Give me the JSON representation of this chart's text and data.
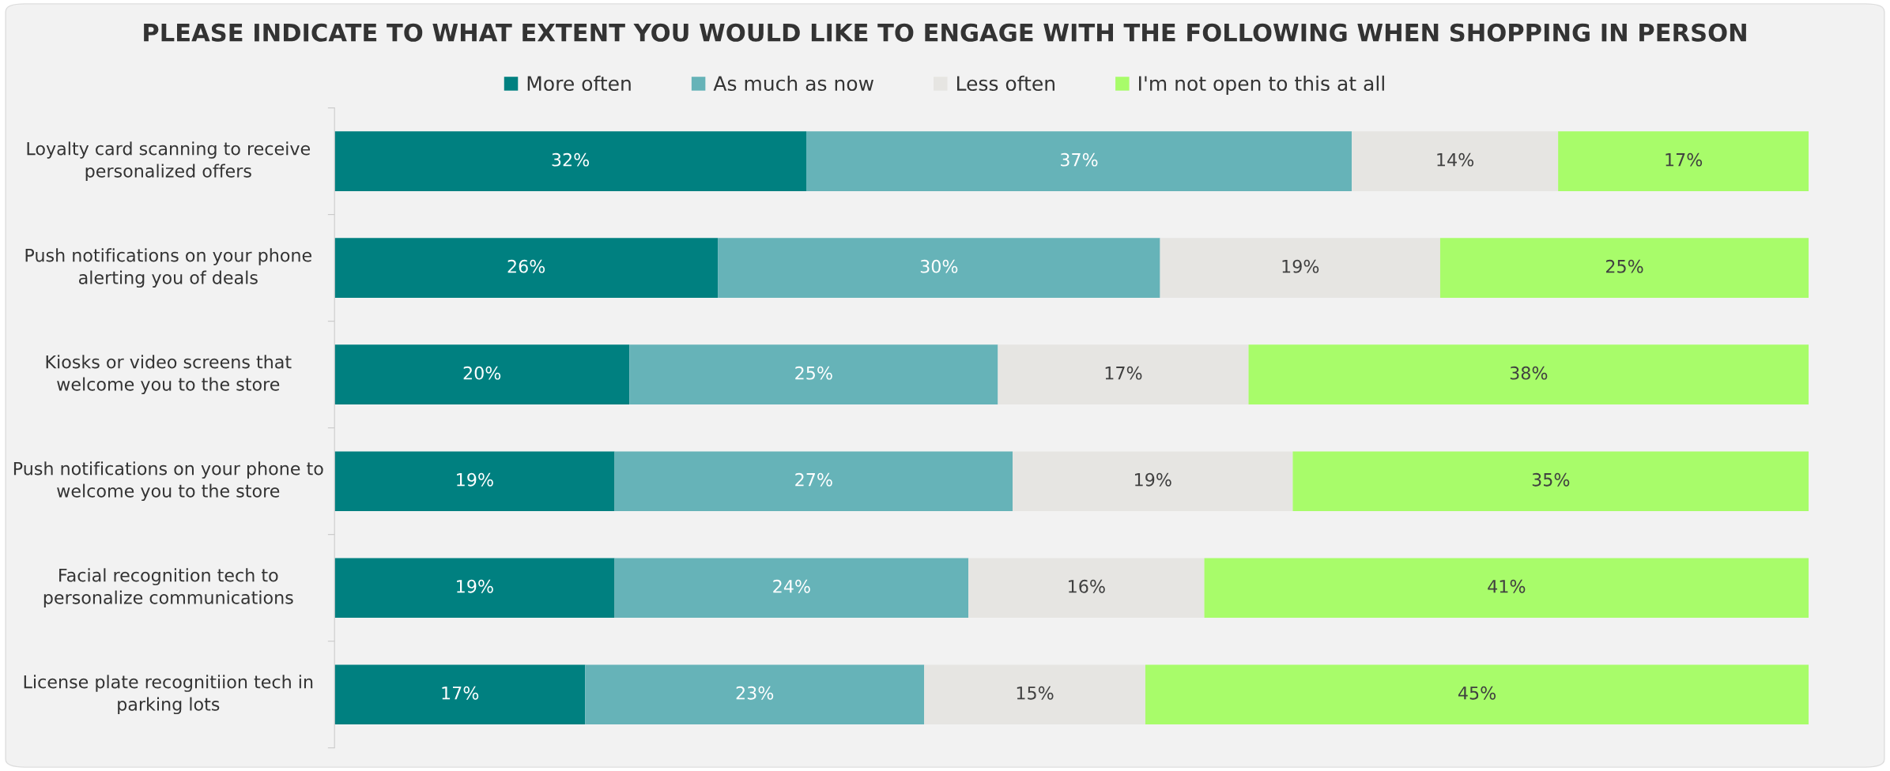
{
  "chart_data": {
    "type": "bar",
    "orientation": "horizontal",
    "stacked": true,
    "legend": "top",
    "grid": false,
    "tick_labels": "y",
    "title": "PLEASE INDICATE TO WHAT EXTENT YOU WOULD LIKE TO ENGAGE WITH THE FOLLOWING WHEN SHOPPING IN PERSON",
    "categories": [
      "Loyalty card scanning to receive\npersonalized offers",
      "Push notifications on your phone\nalerting you of deals",
      "Kiosks or video screens that\nwelcome you to the store",
      "Push notifications on your phone to\nwelcome you to the store",
      "Facial recognition tech to\npersonalize communications",
      "License plate recognitiion tech in\nparking lots"
    ],
    "series": [
      {
        "name": "More often",
        "color": "#008080",
        "values": [
          32,
          26,
          20,
          19,
          19,
          17
        ],
        "value_labels": [
          "32%",
          "26%",
          "20%",
          "19%",
          "19%",
          "17%"
        ]
      },
      {
        "name": "As much as now",
        "color": "#66b3b8",
        "values": [
          37,
          30,
          25,
          27,
          24,
          23
        ],
        "value_labels": [
          "37%",
          "30%",
          "25%",
          "27%",
          "24%",
          "23%"
        ]
      },
      {
        "name": "Less often",
        "color": "#e6e5e2",
        "values": [
          14,
          19,
          17,
          19,
          16,
          15
        ],
        "value_labels": [
          "14%",
          "19%",
          "17%",
          "19%",
          "16%",
          "15%"
        ]
      },
      {
        "name": "I'm not open to this at all",
        "color": "#a8fc6a",
        "values": [
          17,
          25,
          38,
          35,
          41,
          45
        ],
        "value_labels": [
          "17%",
          "25%",
          "38%",
          "35%",
          "41%",
          "45%"
        ]
      }
    ]
  }
}
